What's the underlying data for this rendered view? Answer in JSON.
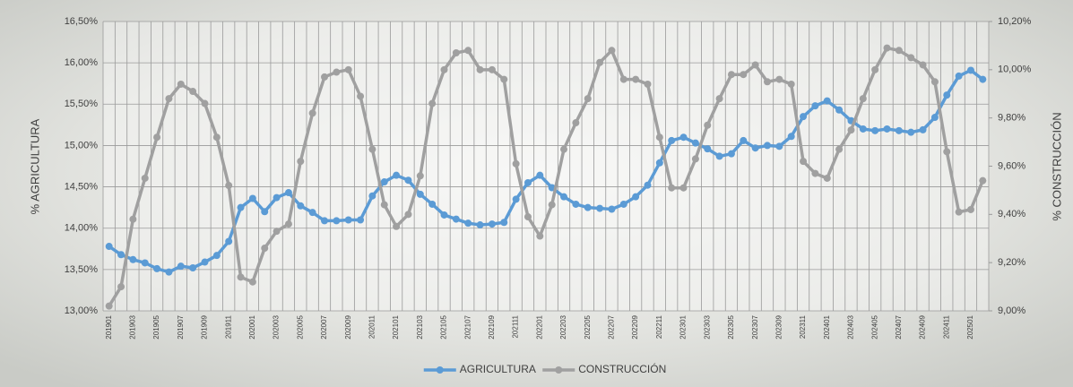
{
  "chart_data": {
    "type": "line",
    "categories": [
      "201901",
      null,
      "201903",
      null,
      "201905",
      null,
      "201907",
      null,
      "201909",
      null,
      "201911",
      null,
      "202001",
      null,
      "202003",
      null,
      "202005",
      null,
      "202007",
      null,
      "202009",
      null,
      "202011",
      null,
      "202101",
      null,
      "202103",
      null,
      "202105",
      null,
      "202107",
      null,
      "202109",
      null,
      "202111",
      null,
      "202201",
      null,
      "202203",
      null,
      "202205",
      null,
      "202207",
      null,
      "202209",
      null,
      "202211",
      null,
      "202301",
      null,
      "202303",
      null,
      "202305",
      null,
      "202307",
      null,
      "202309",
      null,
      "202311",
      null,
      "202401",
      null,
      "202403",
      null,
      "202405",
      null,
      "202407",
      null,
      "202409",
      null,
      "202411",
      null,
      "202501",
      null
    ],
    "y_label": "% AGRICULTURA",
    "y2_label": "% CONSTRUCCIÓN",
    "series": [
      {
        "name": "AGRICULTURA",
        "color": "#5b9bd5",
        "axis": "y",
        "values": [
          13.78,
          13.68,
          13.62,
          13.58,
          13.51,
          13.47,
          13.54,
          13.52,
          13.59,
          13.67,
          13.84,
          14.25,
          14.36,
          14.2,
          14.37,
          14.43,
          14.27,
          14.19,
          14.09,
          14.09,
          14.1,
          14.1,
          14.39,
          14.56,
          14.64,
          14.58,
          14.41,
          14.29,
          14.16,
          14.11,
          14.06,
          14.04,
          14.05,
          14.07,
          14.35,
          14.55,
          14.64,
          14.49,
          14.38,
          14.29,
          14.25,
          14.24,
          14.23,
          14.29,
          14.38,
          14.52,
          14.79,
          15.06,
          15.1,
          15.03,
          14.96,
          14.87,
          14.9,
          15.06,
          14.97,
          15.0,
          14.99,
          15.11,
          15.35,
          15.48,
          15.54,
          15.43,
          15.3,
          15.2,
          15.18,
          15.2,
          15.18,
          15.16,
          15.19,
          15.34,
          15.61,
          15.84,
          15.91,
          15.8
        ]
      },
      {
        "name": "CONSTRUCCIÓN",
        "color": "#a0a0a0",
        "axis": "y2",
        "values": [
          9.02,
          9.1,
          9.38,
          9.55,
          9.72,
          9.88,
          9.94,
          9.91,
          9.86,
          9.72,
          9.52,
          9.14,
          9.12,
          9.26,
          9.33,
          9.36,
          9.62,
          9.82,
          9.97,
          9.99,
          10.0,
          9.89,
          9.67,
          9.44,
          9.35,
          9.4,
          9.56,
          9.86,
          10.0,
          10.07,
          10.08,
          10.0,
          10.0,
          9.96,
          9.61,
          9.39,
          9.31,
          9.44,
          9.67,
          9.78,
          9.88,
          10.03,
          10.08,
          9.96,
          9.96,
          9.94,
          9.72,
          9.51,
          9.51,
          9.63,
          9.77,
          9.88,
          9.98,
          9.98,
          10.02,
          9.95,
          9.96,
          9.94,
          9.62,
          9.57,
          9.55,
          9.67,
          9.75,
          9.88,
          10.0,
          10.09,
          10.08,
          10.05,
          10.02,
          9.95,
          9.66,
          9.41,
          9.42,
          9.54
        ]
      }
    ],
    "ylim": [
      13,
      16.5
    ],
    "yticks": [
      {
        "value": 13,
        "label": "13,00%"
      },
      {
        "value": 13.5,
        "label": "13,50%"
      },
      {
        "value": 14,
        "label": "14,00%"
      },
      {
        "value": 14.5,
        "label": "14,50%"
      },
      {
        "value": 15,
        "label": "15,00%"
      },
      {
        "value": 15.5,
        "label": "15,50%"
      },
      {
        "value": 16,
        "label": "16,00%"
      },
      {
        "value": 16.5,
        "label": "16,50%"
      }
    ],
    "y2lim": [
      9,
      10.2
    ],
    "y2ticks": [
      {
        "value": 9,
        "label": "9,00%"
      },
      {
        "value": 9.2,
        "label": "9,20%"
      },
      {
        "value": 9.4,
        "label": "9,40%"
      },
      {
        "value": 9.6,
        "label": "9,60%"
      },
      {
        "value": 9.8,
        "label": "9,80%"
      },
      {
        "value": 10,
        "label": "10,00%"
      },
      {
        "value": 10.2,
        "label": "10,20%"
      }
    ],
    "grid": true,
    "legend": "bottom"
  }
}
